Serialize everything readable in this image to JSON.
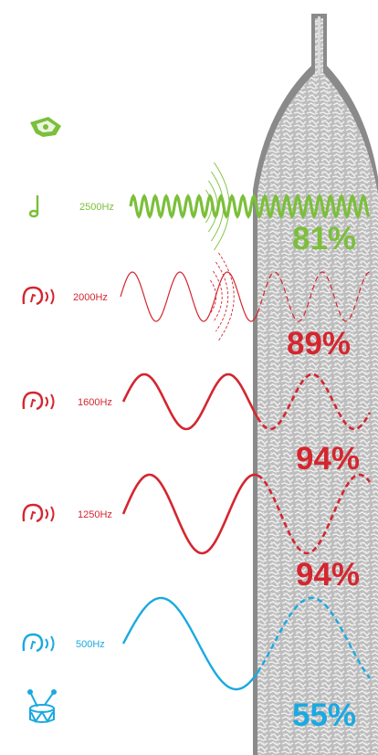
{
  "colors": {
    "green": "#7bbf3a",
    "red": "#d4262f",
    "blue": "#1aa9e1",
    "panel": "#8a8a8a",
    "panel_texture": "#d9d9d9"
  },
  "icons": {
    "top": "whistle-icon",
    "bottom": "drum-icon"
  },
  "rows": [
    {
      "icon": "music-note-icon",
      "frequency": "2500Hz",
      "percent": "81%",
      "color": "green"
    },
    {
      "icon": "ear-icon",
      "frequency": "2000Hz",
      "percent": "89%",
      "color": "red"
    },
    {
      "icon": "ear-icon",
      "frequency": "1600Hz",
      "percent": "94%",
      "color": "red"
    },
    {
      "icon": "ear-icon",
      "frequency": "1250Hz",
      "percent": "94%",
      "color": "red"
    },
    {
      "icon": "ear-icon",
      "frequency": "500Hz",
      "percent": "55%",
      "color": "blue"
    }
  ]
}
